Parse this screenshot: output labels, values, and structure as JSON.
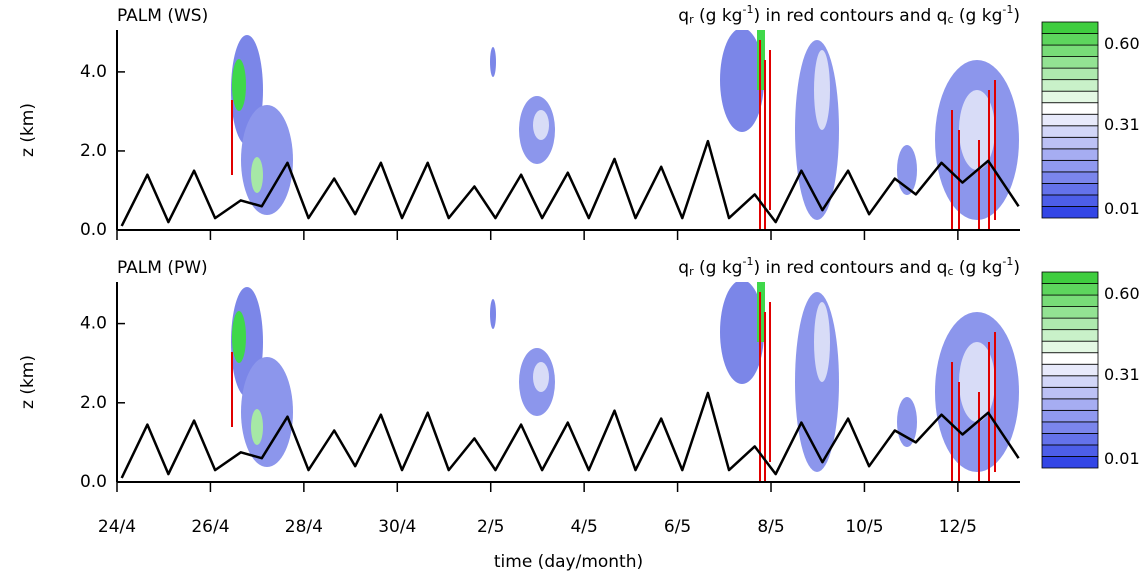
{
  "chart_data": [
    {
      "type": "line",
      "title": "PALM (WS)",
      "subtitle": [
        {
          "text": "q"
        },
        {
          "sub": "r"
        },
        {
          "text": " (g kg"
        },
        {
          "sup": "-1"
        },
        {
          "text": ") in red contours and q"
        },
        {
          "sub": "c"
        },
        {
          "text": " (g kg"
        },
        {
          "sup": "-1"
        },
        {
          "text": ")"
        }
      ],
      "y_label": "z (km)",
      "x": [
        0.1,
        0.65,
        1.1,
        1.65,
        2.1,
        2.65,
        3.1,
        3.65,
        4.1,
        4.65,
        5.1,
        5.65,
        6.1,
        6.65,
        7.1,
        7.65,
        8.1,
        8.65,
        9.1,
        9.65,
        10.1,
        10.65,
        11.1,
        11.65,
        12.1,
        12.65,
        13.1,
        13.65,
        14.1,
        14.65,
        15.1,
        15.65,
        16.1,
        16.65,
        17.1,
        17.65,
        18.1,
        18.65,
        19.3
      ],
      "series": [
        {
          "color": "#000000",
          "values": [
            0.1,
            1.4,
            0.2,
            1.5,
            0.3,
            0.75,
            0.6,
            1.7,
            0.3,
            1.3,
            0.4,
            1.7,
            0.3,
            1.7,
            0.3,
            1.1,
            0.3,
            1.4,
            0.3,
            1.45,
            0.3,
            1.8,
            0.3,
            1.6,
            0.3,
            2.25,
            0.3,
            0.9,
            0.2,
            1.5,
            0.5,
            1.5,
            0.4,
            1.3,
            0.9,
            1.7,
            1.2,
            1.75,
            0.6
          ]
        }
      ],
      "xlim": [
        0,
        19.33
      ],
      "xticks": [
        0,
        2,
        4,
        6,
        8,
        10,
        12,
        14,
        16,
        18
      ],
      "ylim": [
        0,
        5.06
      ],
      "yticks": [
        {
          "value": 0,
          "label": "0.0"
        },
        {
          "value": 2,
          "label": "2.0"
        },
        {
          "value": 4,
          "label": "4.0"
        }
      ],
      "colorbar": {
        "lim": [
          -0.02,
          0.68
        ],
        "ticks": [
          0.01,
          0.31,
          {
            "value": 0.6,
            "label": "0.60"
          }
        ]
      }
    },
    {
      "type": "line",
      "title": "PALM (PW)",
      "subtitle": [
        {
          "text": "q"
        },
        {
          "sub": "r"
        },
        {
          "text": " (g kg"
        },
        {
          "sup": "-1"
        },
        {
          "text": ") in red contours and q"
        },
        {
          "sub": "c"
        },
        {
          "text": " (g kg"
        },
        {
          "sup": "-1"
        },
        {
          "text": ")"
        }
      ],
      "y_label": "z (km)",
      "x_label": "time (day/month)",
      "x": [
        0.1,
        0.65,
        1.1,
        1.65,
        2.1,
        2.65,
        3.1,
        3.65,
        4.1,
        4.65,
        5.1,
        5.65,
        6.1,
        6.65,
        7.1,
        7.65,
        8.1,
        8.65,
        9.1,
        9.65,
        10.1,
        10.65,
        11.1,
        11.65,
        12.1,
        12.65,
        13.1,
        13.65,
        14.1,
        14.65,
        15.1,
        15.65,
        16.1,
        16.65,
        17.1,
        17.65,
        18.1,
        18.65,
        19.3
      ],
      "series": [
        {
          "color": "#000000",
          "values": [
            0.1,
            1.45,
            0.2,
            1.55,
            0.3,
            0.75,
            0.6,
            1.65,
            0.3,
            1.3,
            0.4,
            1.7,
            0.3,
            1.75,
            0.3,
            1.1,
            0.3,
            1.45,
            0.3,
            1.5,
            0.3,
            1.8,
            0.3,
            1.6,
            0.3,
            2.25,
            0.3,
            0.9,
            0.2,
            1.5,
            0.5,
            1.6,
            0.4,
            1.3,
            1.0,
            1.7,
            1.2,
            1.75,
            0.6
          ]
        }
      ],
      "xlim": [
        0,
        19.33
      ],
      "xticks": [
        {
          "value": 0,
          "label": "24/4"
        },
        {
          "value": 2,
          "label": "26/4"
        },
        {
          "value": 4,
          "label": "28/4"
        },
        {
          "value": 6,
          "label": "30/4"
        },
        {
          "value": 8,
          "label": "2/5"
        },
        {
          "value": 10,
          "label": "4/5"
        },
        {
          "value": 12,
          "label": "6/5"
        },
        {
          "value": 14,
          "label": "8/5"
        },
        {
          "value": 16,
          "label": "10/5"
        },
        {
          "value": 18,
          "label": "12/5"
        }
      ],
      "ylim": [
        0,
        5.05
      ],
      "yticks": [
        {
          "value": 0,
          "label": "0.0"
        },
        {
          "value": 2,
          "label": "2.0"
        },
        {
          "value": 4,
          "label": "4.0"
        }
      ],
      "colorbar": {
        "lim": [
          -0.02,
          0.68
        ],
        "ticks": [
          0.01,
          0.31,
          {
            "value": 0.6,
            "label": "0.60"
          }
        ]
      }
    }
  ]
}
